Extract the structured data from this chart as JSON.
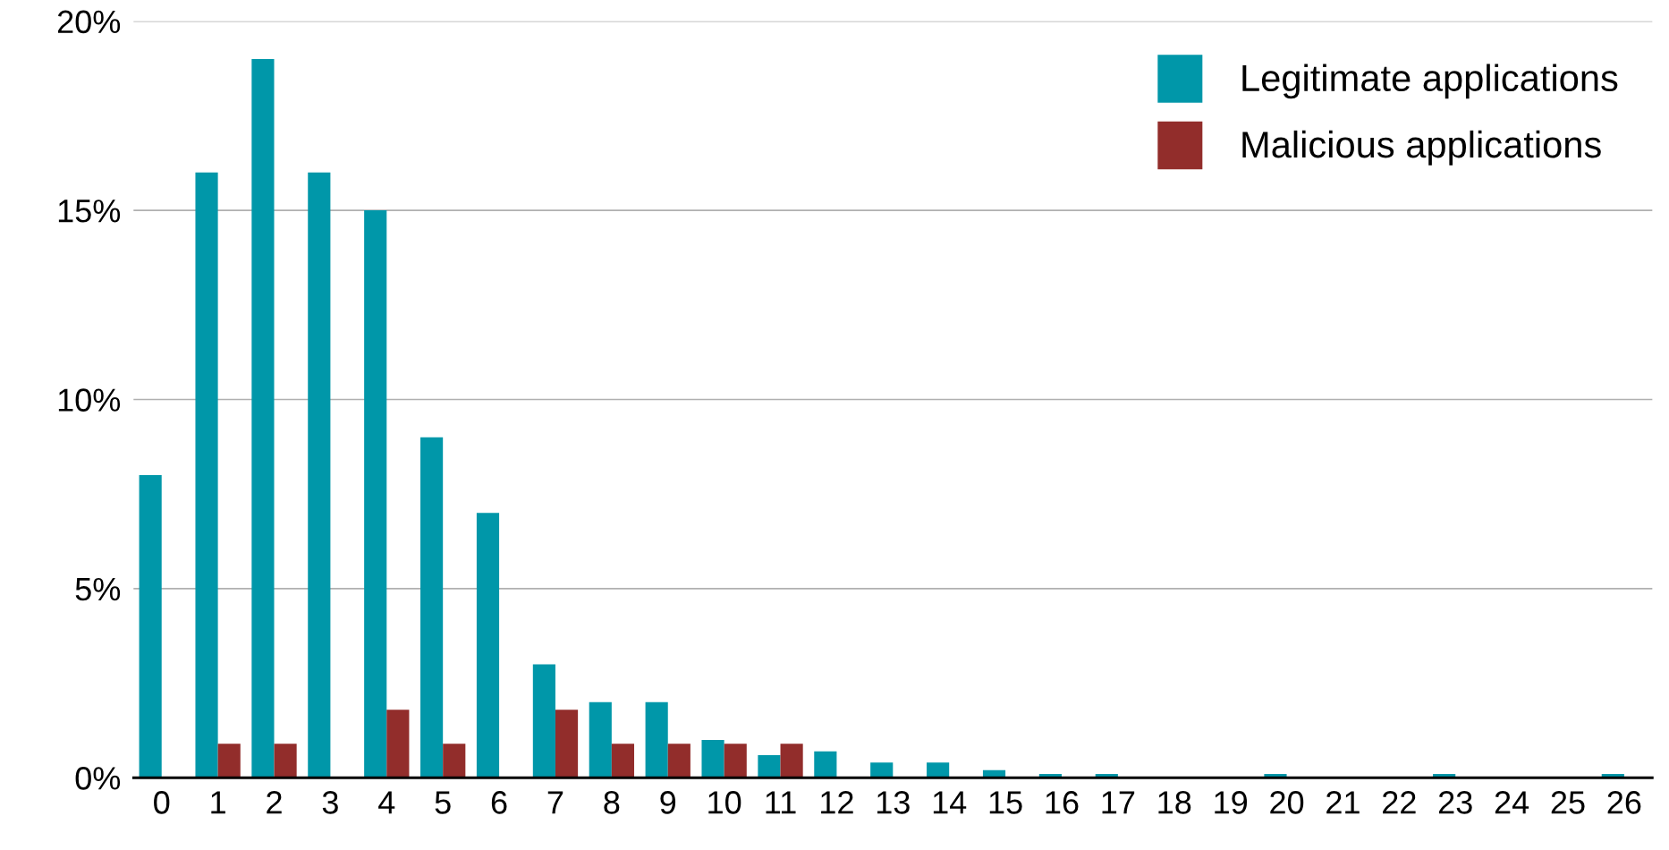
{
  "chart_data": {
    "type": "bar",
    "categories": [
      "0",
      "1",
      "2",
      "3",
      "4",
      "5",
      "6",
      "7",
      "8",
      "9",
      "10",
      "11",
      "12",
      "13",
      "14",
      "15",
      "16",
      "17",
      "18",
      "19",
      "20",
      "21",
      "22",
      "23",
      "24",
      "25",
      "26"
    ],
    "series": [
      {
        "name": "Legitimate applications",
        "color": "#0097a9",
        "values": [
          8,
          16,
          19,
          16,
          15,
          9,
          7,
          3,
          2,
          2,
          1.0,
          0.6,
          0.7,
          0.4,
          0.4,
          0.2,
          0.1,
          0.1,
          null,
          null,
          0.1,
          null,
          null,
          0.1,
          null,
          null,
          0.1
        ]
      },
      {
        "name": "Malicious applications",
        "color": "#922d2b",
        "values": [
          null,
          0.9,
          0.9,
          null,
          1.8,
          0.9,
          null,
          1.8,
          0.9,
          0.9,
          0.9,
          0.9,
          null,
          null,
          null,
          null,
          null,
          null,
          null,
          null,
          null,
          null,
          null,
          null,
          null,
          null,
          null
        ]
      }
    ],
    "ylim": [
      0,
      20
    ],
    "yticks": [
      {
        "value": 0,
        "label": "0%"
      },
      {
        "value": 5,
        "label": "5%"
      },
      {
        "value": 10,
        "label": "10%"
      },
      {
        "value": 15,
        "label": "15%"
      },
      {
        "value": 20,
        "label": "20%"
      }
    ],
    "grid": "y",
    "legend": "top right"
  }
}
